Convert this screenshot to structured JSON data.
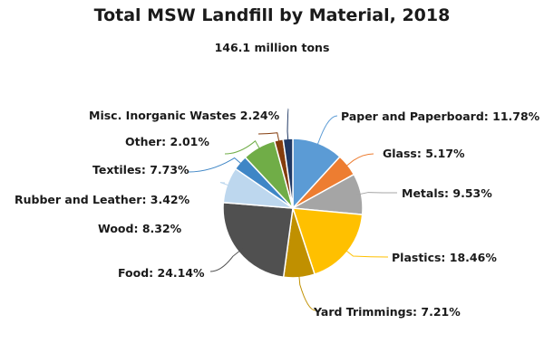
{
  "chart_data": {
    "type": "pie",
    "title": "Total MSW Landfill by Material, 2018",
    "subtitle": "146.1 million tons",
    "categories": [
      "Paper and Paperboard",
      "Glass",
      "Metals",
      "Plastics",
      "Yard Trimmings",
      "Food",
      "Wood",
      "Rubber and Leather",
      "Textiles",
      "Other",
      "Misc. Inorganic Wastes"
    ],
    "values": [
      11.78,
      5.17,
      9.53,
      18.46,
      7.21,
      24.14,
      8.32,
      3.42,
      7.73,
      2.01,
      2.24
    ],
    "colors": [
      "#5b9bd5",
      "#ed7d31",
      "#a5a5a5",
      "#ffc000",
      "#c09000",
      "#505050",
      "#bdd7ee",
      "#3f86c6",
      "#70ad47",
      "#843c0c",
      "#1f3864"
    ],
    "labels": [
      "Paper and Paperboard: 11.78%",
      "Glass: 5.17%",
      "Metals: 9.53%",
      "Plastics: 18.46%",
      "Yard Trimmings: 7.21%",
      "Food: 24.14%",
      "Wood: 8.32%",
      "Rubber and Leather: 3.42%",
      "Textiles: 7.73%",
      "Other: 2.01%",
      "Misc. Inorganic Wastes 2.24%"
    ],
    "start_angle": "12 o'clock",
    "direction": "clockwise",
    "legend": "none (data labels with leader lines)"
  }
}
